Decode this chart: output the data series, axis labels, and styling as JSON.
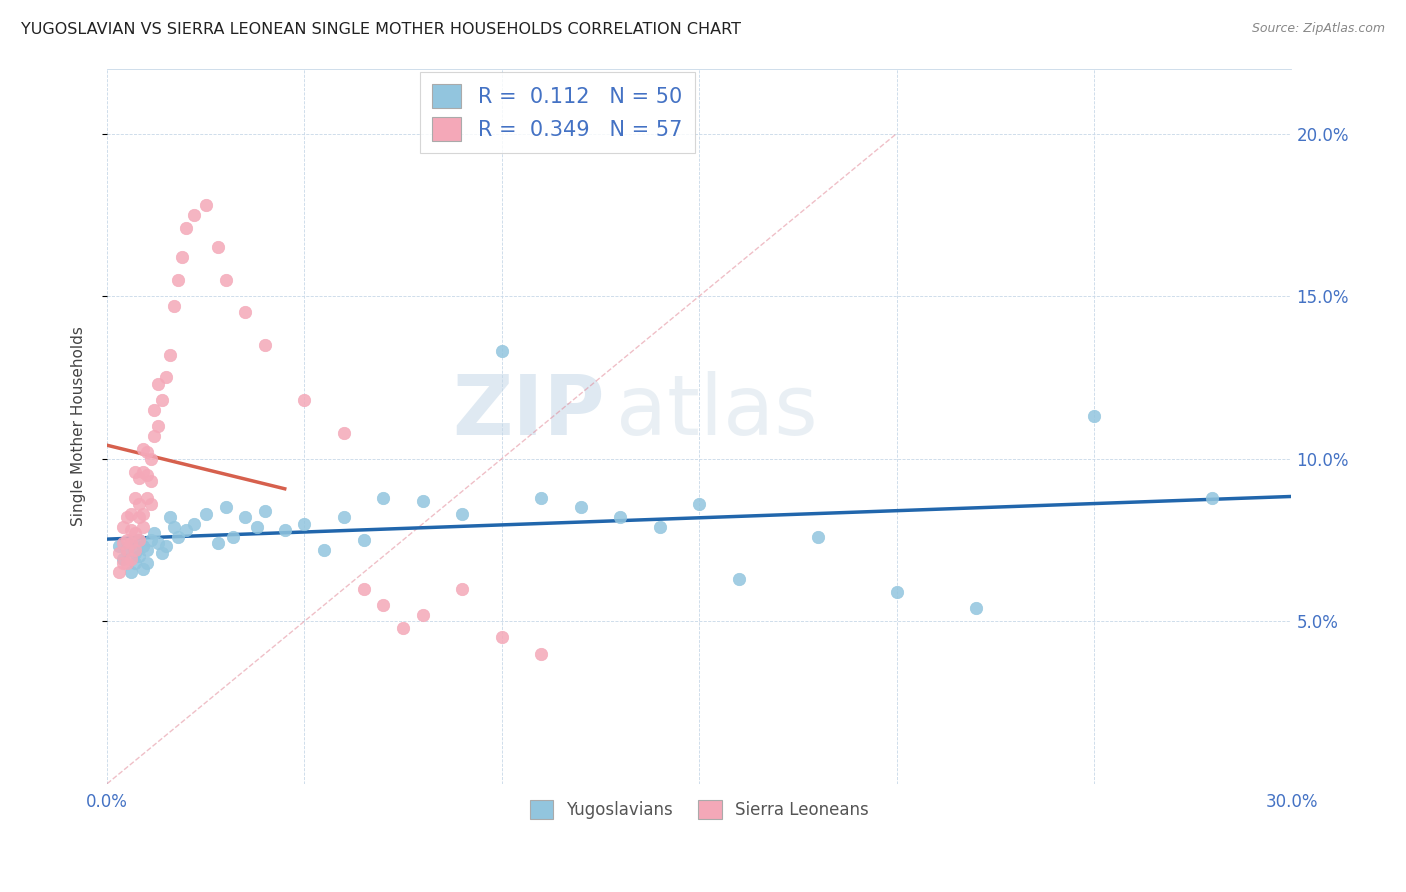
{
  "title": "YUGOSLAVIAN VS SIERRA LEONEAN SINGLE MOTHER HOUSEHOLDS CORRELATION CHART",
  "source": "Source: ZipAtlas.com",
  "ylabel": "Single Mother Households",
  "xlim": [
    0.0,
    0.3
  ],
  "ylim": [
    0.0,
    0.22
  ],
  "xtick_positions": [
    0.0,
    0.05,
    0.1,
    0.15,
    0.2,
    0.25,
    0.3
  ],
  "xtick_labels": [
    "0.0%",
    "",
    "",
    "",
    "",
    "",
    "30.0%"
  ],
  "ytick_positions": [
    0.05,
    0.1,
    0.15,
    0.2
  ],
  "ytick_labels": [
    "5.0%",
    "10.0%",
    "15.0%",
    "20.0%"
  ],
  "color_yugo": "#92c5de",
  "color_sierra": "#f4a8b8",
  "color_yugo_line": "#2166ac",
  "color_sierra_line": "#d6604d",
  "color_diag": "#e08090",
  "legend_r_yugo": "0.112",
  "legend_n_yugo": "50",
  "legend_r_sierra": "0.349",
  "legend_n_sierra": "57",
  "watermark_zip": "ZIP",
  "watermark_atlas": "atlas",
  "yugo_x": [
    0.003,
    0.004,
    0.005,
    0.006,
    0.006,
    0.007,
    0.007,
    0.008,
    0.008,
    0.009,
    0.009,
    0.01,
    0.01,
    0.011,
    0.012,
    0.013,
    0.014,
    0.015,
    0.016,
    0.017,
    0.018,
    0.02,
    0.022,
    0.025,
    0.028,
    0.03,
    0.032,
    0.035,
    0.038,
    0.04,
    0.045,
    0.05,
    0.055,
    0.06,
    0.065,
    0.07,
    0.08,
    0.09,
    0.1,
    0.11,
    0.12,
    0.13,
    0.14,
    0.15,
    0.16,
    0.18,
    0.2,
    0.22,
    0.25,
    0.28
  ],
  "yugo_y": [
    0.073,
    0.069,
    0.072,
    0.065,
    0.074,
    0.071,
    0.068,
    0.075,
    0.07,
    0.066,
    0.073,
    0.072,
    0.068,
    0.075,
    0.077,
    0.074,
    0.071,
    0.073,
    0.082,
    0.079,
    0.076,
    0.078,
    0.08,
    0.083,
    0.074,
    0.085,
    0.076,
    0.082,
    0.079,
    0.084,
    0.078,
    0.08,
    0.072,
    0.082,
    0.075,
    0.088,
    0.087,
    0.083,
    0.133,
    0.088,
    0.085,
    0.082,
    0.079,
    0.086,
    0.063,
    0.076,
    0.059,
    0.054,
    0.113,
    0.088
  ],
  "sierra_x": [
    0.003,
    0.003,
    0.004,
    0.004,
    0.004,
    0.005,
    0.005,
    0.005,
    0.005,
    0.006,
    0.006,
    0.006,
    0.006,
    0.007,
    0.007,
    0.007,
    0.007,
    0.008,
    0.008,
    0.008,
    0.008,
    0.009,
    0.009,
    0.009,
    0.009,
    0.01,
    0.01,
    0.01,
    0.011,
    0.011,
    0.011,
    0.012,
    0.012,
    0.013,
    0.013,
    0.014,
    0.015,
    0.016,
    0.017,
    0.018,
    0.019,
    0.02,
    0.022,
    0.025,
    0.028,
    0.03,
    0.035,
    0.04,
    0.05,
    0.06,
    0.065,
    0.07,
    0.075,
    0.08,
    0.09,
    0.1,
    0.11
  ],
  "sierra_y": [
    0.065,
    0.071,
    0.068,
    0.074,
    0.079,
    0.072,
    0.075,
    0.068,
    0.082,
    0.069,
    0.074,
    0.078,
    0.083,
    0.072,
    0.077,
    0.088,
    0.096,
    0.075,
    0.082,
    0.086,
    0.094,
    0.079,
    0.083,
    0.096,
    0.103,
    0.088,
    0.095,
    0.102,
    0.086,
    0.093,
    0.1,
    0.107,
    0.115,
    0.11,
    0.123,
    0.118,
    0.125,
    0.132,
    0.147,
    0.155,
    0.162,
    0.171,
    0.175,
    0.178,
    0.165,
    0.155,
    0.145,
    0.135,
    0.118,
    0.108,
    0.06,
    0.055,
    0.048,
    0.052,
    0.06,
    0.045,
    0.04
  ]
}
